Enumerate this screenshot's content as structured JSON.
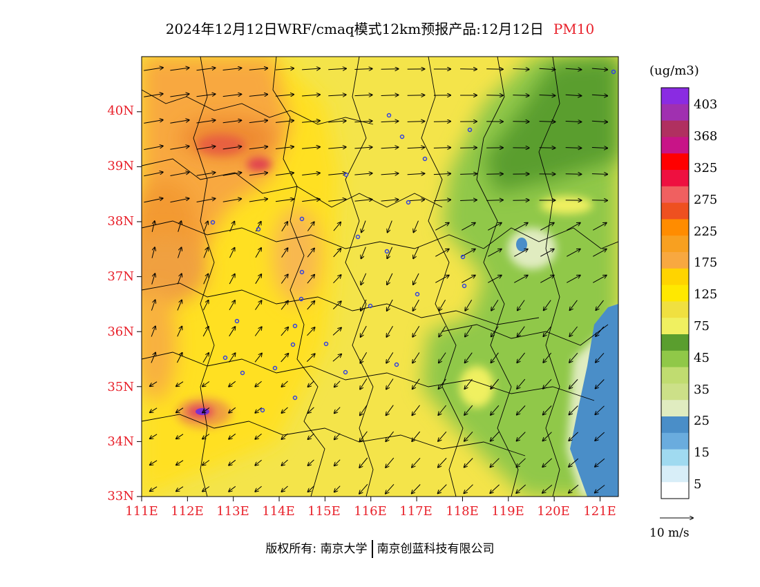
{
  "header": {
    "title": "2024年12月12日WRF/cmaq模式12km预报产品:12月12日",
    "pollutant": "PM10"
  },
  "map": {
    "lat_labels": [
      "40N",
      "39N",
      "38N",
      "37N",
      "36N",
      "35N",
      "34N",
      "33N"
    ],
    "lon_labels": [
      "111E",
      "112E",
      "113E",
      "114E",
      "115E",
      "116E",
      "117E",
      "118E",
      "119E",
      "120E",
      "121E"
    ],
    "lat_range": [
      33,
      41
    ],
    "lon_range": [
      111,
      121.4
    ]
  },
  "legend": {
    "unit": "(ug/m3)",
    "colors": [
      "#8a2be2",
      "#a030b0",
      "#b03060",
      "#c81487",
      "#ff0000",
      "#ee1040",
      "#f06060",
      "#ee5020",
      "#ff8c00",
      "#f8a020",
      "#f8a840",
      "#ffd400",
      "#ffe800",
      "#f0e040",
      "#f0f060",
      "#5a9e2e",
      "#90c848",
      "#c0dc70",
      "#cce088",
      "#e0ecc0",
      "#4a8ec8",
      "#6aacde",
      "#a0daf0",
      "#d8eef8",
      "#ffffff"
    ],
    "labels": [
      "403",
      "368",
      "325",
      "275",
      "225",
      "175",
      "125",
      "75",
      "45",
      "35",
      "25",
      "15",
      "5"
    ]
  },
  "wind": {
    "reference_label": "10 m/s"
  },
  "footer": {
    "copyright_label": "版权所有:",
    "org1": "南京大学",
    "org2": "南京创蓝科技有限公司"
  }
}
